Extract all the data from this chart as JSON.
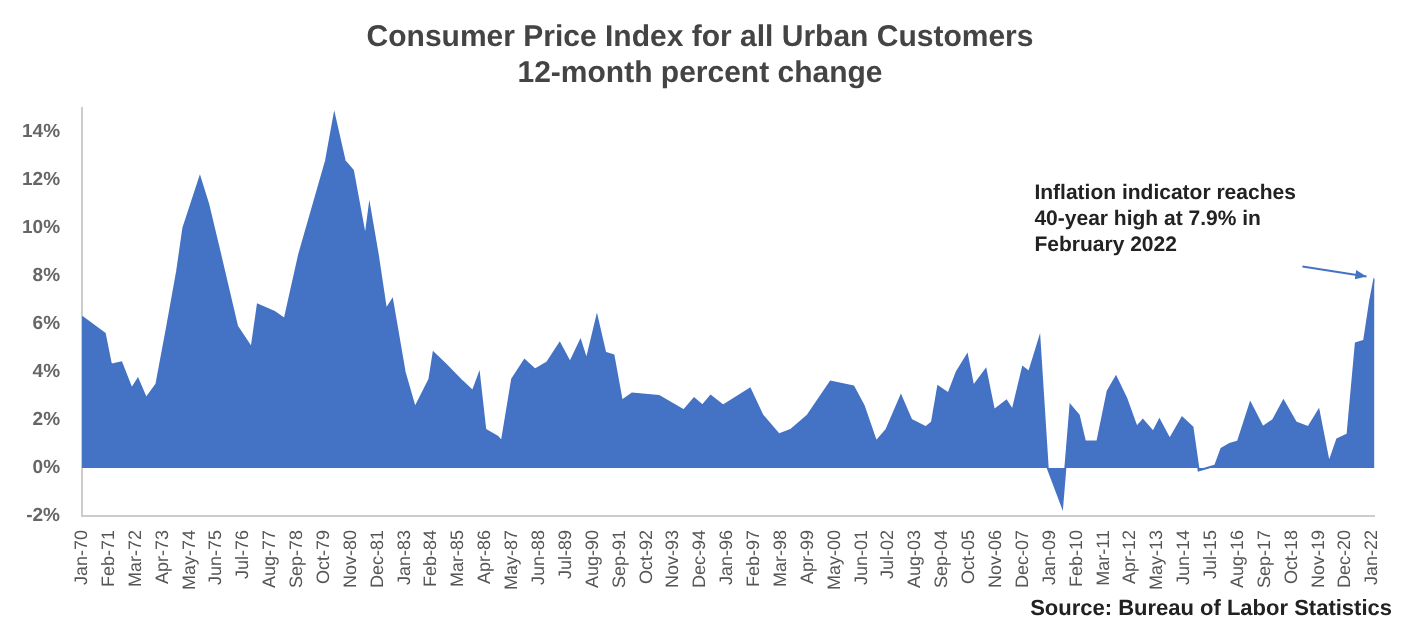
{
  "chart_data": {
    "type": "area",
    "title": "Consumer Price Index for all Urban Customers",
    "subtitle": "12-month percent change",
    "color": "#4472c4",
    "grid": false,
    "legend": false,
    "xlim": [
      "1970-01",
      "2022-02"
    ],
    "ylim": [
      -2,
      15
    ],
    "yticks": [
      {
        "value": -2,
        "label": "-2%"
      },
      {
        "value": 0,
        "label": "0%"
      },
      {
        "value": 2,
        "label": "2%"
      },
      {
        "value": 4,
        "label": "4%"
      },
      {
        "value": 6,
        "label": "6%"
      },
      {
        "value": 8,
        "label": "8%"
      },
      {
        "value": 10,
        "label": "10%"
      },
      {
        "value": 12,
        "label": "12%"
      },
      {
        "value": 14,
        "label": "14%"
      }
    ],
    "xticks": [
      {
        "value": "1970-01",
        "label": "Jan-70"
      },
      {
        "value": "1971-02",
        "label": "Feb-71"
      },
      {
        "value": "1972-03",
        "label": "Mar-72"
      },
      {
        "value": "1973-04",
        "label": "Apr-73"
      },
      {
        "value": "1974-05",
        "label": "May-74"
      },
      {
        "value": "1975-06",
        "label": "Jun-75"
      },
      {
        "value": "1976-07",
        "label": "Jul-76"
      },
      {
        "value": "1977-08",
        "label": "Aug-77"
      },
      {
        "value": "1978-09",
        "label": "Sep-78"
      },
      {
        "value": "1979-10",
        "label": "Oct-79"
      },
      {
        "value": "1980-11",
        "label": "Nov-80"
      },
      {
        "value": "1981-12",
        "label": "Dec-81"
      },
      {
        "value": "1983-01",
        "label": "Jan-83"
      },
      {
        "value": "1984-02",
        "label": "Feb-84"
      },
      {
        "value": "1985-03",
        "label": "Mar-85"
      },
      {
        "value": "1986-04",
        "label": "Apr-86"
      },
      {
        "value": "1987-05",
        "label": "May-87"
      },
      {
        "value": "1988-06",
        "label": "Jun-88"
      },
      {
        "value": "1989-07",
        "label": "Jul-89"
      },
      {
        "value": "1990-08",
        "label": "Aug-90"
      },
      {
        "value": "1991-09",
        "label": "Sep-91"
      },
      {
        "value": "1992-10",
        "label": "Oct-92"
      },
      {
        "value": "1993-11",
        "label": "Nov-93"
      },
      {
        "value": "1994-12",
        "label": "Dec-94"
      },
      {
        "value": "1996-01",
        "label": "Jan-96"
      },
      {
        "value": "1997-02",
        "label": "Feb-97"
      },
      {
        "value": "1998-03",
        "label": "Mar-98"
      },
      {
        "value": "1999-04",
        "label": "Apr-99"
      },
      {
        "value": "2000-05",
        "label": "May-00"
      },
      {
        "value": "2001-06",
        "label": "Jun-01"
      },
      {
        "value": "2002-07",
        "label": "Jul-02"
      },
      {
        "value": "2003-08",
        "label": "Aug-03"
      },
      {
        "value": "2004-09",
        "label": "Sep-04"
      },
      {
        "value": "2005-10",
        "label": "Oct-05"
      },
      {
        "value": "2006-11",
        "label": "Nov-06"
      },
      {
        "value": "2007-12",
        "label": "Dec-07"
      },
      {
        "value": "2009-01",
        "label": "Jan-09"
      },
      {
        "value": "2010-02",
        "label": "Feb-10"
      },
      {
        "value": "2011-03",
        "label": "Mar-11"
      },
      {
        "value": "2012-04",
        "label": "Apr-12"
      },
      {
        "value": "2013-05",
        "label": "May-13"
      },
      {
        "value": "2014-06",
        "label": "Jun-14"
      },
      {
        "value": "2015-07",
        "label": "Jul-15"
      },
      {
        "value": "2016-08",
        "label": "Aug-16"
      },
      {
        "value": "2017-09",
        "label": "Sep-17"
      },
      {
        "value": "2018-10",
        "label": "Oct-18"
      },
      {
        "value": "2019-11",
        "label": "Nov-19"
      },
      {
        "value": "2020-12",
        "label": "Dec-20"
      },
      {
        "value": "2022-01",
        "label": "Jan-22"
      }
    ],
    "x": [
      "1970-01",
      "1970-12",
      "1971-03",
      "1971-08",
      "1972-01",
      "1972-04",
      "1972-08",
      "1973-01",
      "1973-06",
      "1973-11",
      "1974-02",
      "1974-10",
      "1975-02",
      "1975-07",
      "1976-04",
      "1976-11",
      "1977-02",
      "1977-10",
      "1978-03",
      "1978-10",
      "1979-06",
      "1979-11",
      "1980-03",
      "1980-08",
      "1980-12",
      "1981-06",
      "1981-08",
      "1981-12",
      "1982-04",
      "1982-07",
      "1983-01",
      "1983-06",
      "1984-01",
      "1984-03",
      "1984-09",
      "1985-05",
      "1985-10",
      "1986-01",
      "1986-04",
      "1986-10",
      "1986-12",
      "1987-05",
      "1987-11",
      "1988-04",
      "1988-10",
      "1989-04",
      "1989-09",
      "1990-02",
      "1990-05",
      "1990-10",
      "1991-02",
      "1991-06",
      "1991-10",
      "1992-03",
      "1993-04",
      "1994-04",
      "1994-09",
      "1995-01",
      "1995-05",
      "1995-11",
      "1996-12",
      "1997-06",
      "1998-02",
      "1998-08",
      "1999-04",
      "2000-03",
      "2001-02",
      "2001-07",
      "2002-01",
      "2002-06",
      "2003-01",
      "2003-06",
      "2004-01",
      "2004-04",
      "2004-07",
      "2004-12",
      "2005-04",
      "2005-09",
      "2005-12",
      "2006-06",
      "2006-10",
      "2007-04",
      "2007-07",
      "2007-12",
      "2008-03",
      "2008-08",
      "2008-12",
      "2009-07",
      "2009-11",
      "2010-03",
      "2010-06",
      "2010-12",
      "2011-05",
      "2011-09",
      "2012-02",
      "2012-07",
      "2012-10",
      "2013-03",
      "2013-06",
      "2013-11",
      "2014-05",
      "2014-10",
      "2015-01",
      "2015-05",
      "2015-09",
      "2015-12",
      "2016-04",
      "2016-08",
      "2017-02",
      "2017-08",
      "2018-01",
      "2018-06",
      "2018-12",
      "2019-06",
      "2019-11",
      "2020-04",
      "2020-08",
      "2021-01",
      "2021-05",
      "2021-09",
      "2021-12",
      "2022-02"
    ],
    "values": [
      6.3,
      5.6,
      4.3,
      4.4,
      3.3,
      3.7,
      2.9,
      3.5,
      5.8,
      8.2,
      10.0,
      12.1,
      11.0,
      9.2,
      5.9,
      5.0,
      6.8,
      6.5,
      6.2,
      8.9,
      11.3,
      12.8,
      14.7,
      12.8,
      12.4,
      9.6,
      10.9,
      8.9,
      6.6,
      7.0,
      4.0,
      2.5,
      3.7,
      4.8,
      4.3,
      3.6,
      3.2,
      3.9,
      1.6,
      1.3,
      1.1,
      3.7,
      4.5,
      4.1,
      4.4,
      5.2,
      4.4,
      5.3,
      4.5,
      6.3,
      4.8,
      4.7,
      2.8,
      3.1,
      3.0,
      2.4,
      2.9,
      2.6,
      3.0,
      2.6,
      3.3,
      2.2,
      1.4,
      1.6,
      2.2,
      3.6,
      3.4,
      2.6,
      1.1,
      1.6,
      3.0,
      2.0,
      1.7,
      1.9,
      3.4,
      3.1,
      4.0,
      4.7,
      3.4,
      4.1,
      2.4,
      2.8,
      2.4,
      4.2,
      4.0,
      5.4,
      0.0,
      -1.6,
      2.6,
      2.2,
      1.1,
      1.1,
      3.2,
      3.8,
      2.9,
      1.7,
      2.0,
      1.5,
      2.0,
      1.2,
      2.1,
      1.7,
      -0.1,
      0.0,
      0.1,
      0.8,
      1.0,
      1.1,
      2.7,
      1.7,
      2.0,
      2.8,
      1.9,
      1.7,
      2.4,
      0.2,
      1.2,
      1.4,
      5.2,
      5.3,
      7.0,
      7.9
    ],
    "annotations": [
      {
        "text": "Inflation indicator reaches 40-year high at 7.9% in February 2022",
        "x": "2022-02",
        "y": 7.9
      },
      "Source: Bureau of Labor Statistics"
    ]
  }
}
